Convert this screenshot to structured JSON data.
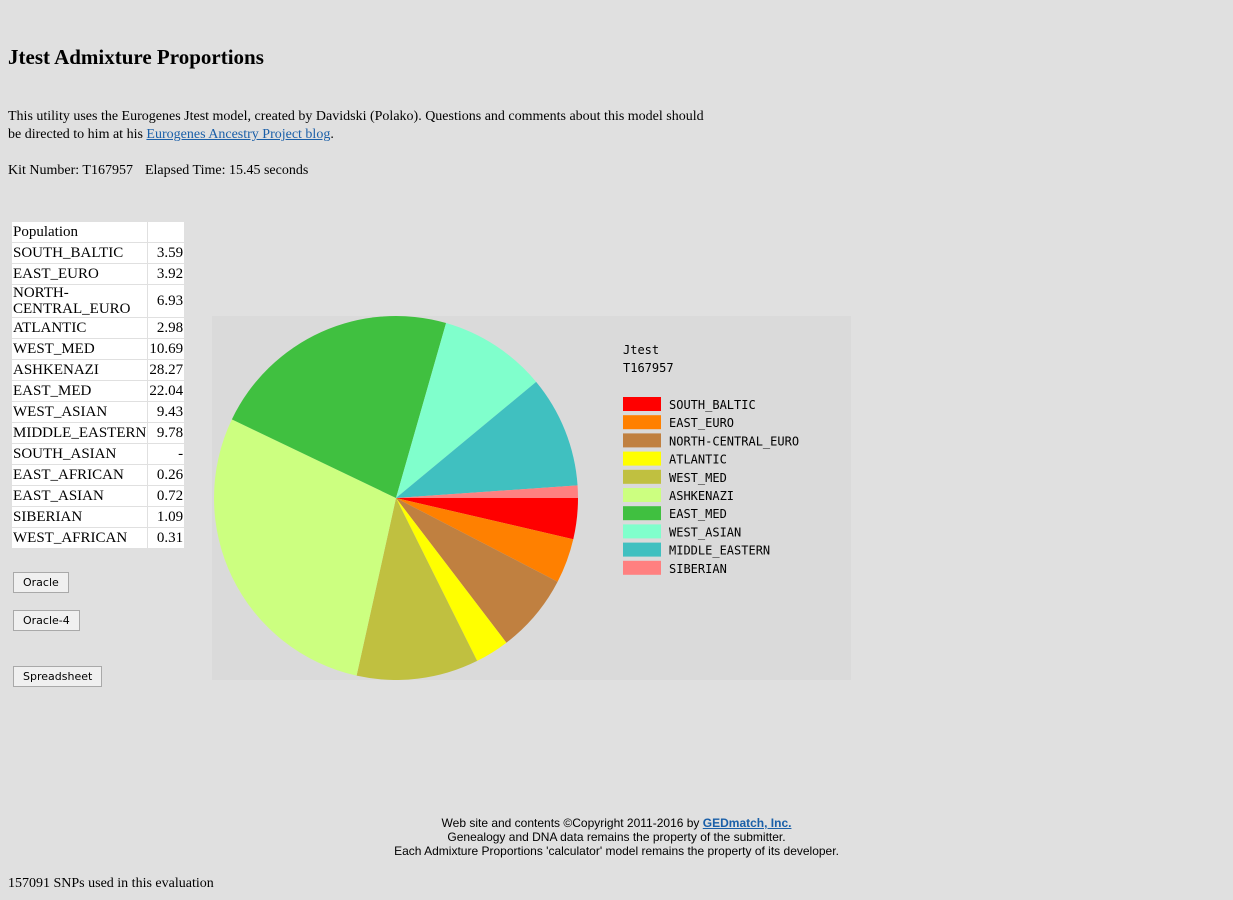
{
  "page": {
    "title": "Jtest Admixture Proportions",
    "intro_before": "This utility uses the Eurogenes Jtest model, created by Davidski (Polako). Questions and comments about this model should be directed to him at his ",
    "intro_link": "Eurogenes Ancestry Project blog",
    "intro_after": ".",
    "kit_label": "Kit Number: T167957",
    "elapsed_label": "Elapsed Time: 15.45 seconds"
  },
  "table": {
    "header": "Population",
    "rows": [
      {
        "name": "SOUTH_BALTIC",
        "value": "3.59"
      },
      {
        "name": "EAST_EURO",
        "value": "3.92"
      },
      {
        "name": "NORTH-CENTRAL_EURO",
        "value": "6.93"
      },
      {
        "name": "ATLANTIC",
        "value": "2.98"
      },
      {
        "name": "WEST_MED",
        "value": "10.69"
      },
      {
        "name": "ASHKENAZI",
        "value": "28.27"
      },
      {
        "name": "EAST_MED",
        "value": "22.04"
      },
      {
        "name": "WEST_ASIAN",
        "value": "9.43"
      },
      {
        "name": "MIDDLE_EASTERN",
        "value": "9.78"
      },
      {
        "name": "SOUTH_ASIAN",
        "value": "-"
      },
      {
        "name": "EAST_AFRICAN",
        "value": "0.26"
      },
      {
        "name": "EAST_ASIAN",
        "value": "0.72"
      },
      {
        "name": "SIBERIAN",
        "value": "1.09"
      },
      {
        "name": "WEST_AFRICAN",
        "value": "0.31"
      }
    ]
  },
  "buttons": {
    "oracle": "Oracle",
    "oracle4": "Oracle-4",
    "spreadsheet": "Spreadsheet"
  },
  "chart_data": {
    "type": "pie",
    "title": "Jtest",
    "subtitle": "T167957",
    "legend_position": "right",
    "slices": [
      {
        "name": "SOUTH_BALTIC",
        "value": 3.59,
        "color": "#ff0000"
      },
      {
        "name": "EAST_EURO",
        "value": 3.92,
        "color": "#ff8000"
      },
      {
        "name": "NORTH-CENTRAL_EURO",
        "value": 6.93,
        "color": "#c08040"
      },
      {
        "name": "ATLANTIC",
        "value": 2.98,
        "color": "#ffff00"
      },
      {
        "name": "WEST_MED",
        "value": 10.69,
        "color": "#c0c040"
      },
      {
        "name": "ASHKENAZI",
        "value": 28.27,
        "color": "#ccff80"
      },
      {
        "name": "EAST_MED",
        "value": 22.04,
        "color": "#40c040"
      },
      {
        "name": "WEST_ASIAN",
        "value": 9.43,
        "color": "#80ffcc"
      },
      {
        "name": "MIDDLE_EASTERN",
        "value": 9.78,
        "color": "#40c0c0"
      },
      {
        "name": "SIBERIAN",
        "value": 1.09,
        "color": "#ff8080"
      }
    ]
  },
  "footer": {
    "line1_before": "Web site and contents ©Copyright 2011-2016 by ",
    "line1_link": "GEDmatch, Inc.",
    "line2": "Genealogy and DNA data remains the property of the submitter.",
    "line3": "Each Admixture Proportions 'calculator' model remains the property of its developer."
  },
  "snps": "157091 SNPs used in this evaluation"
}
